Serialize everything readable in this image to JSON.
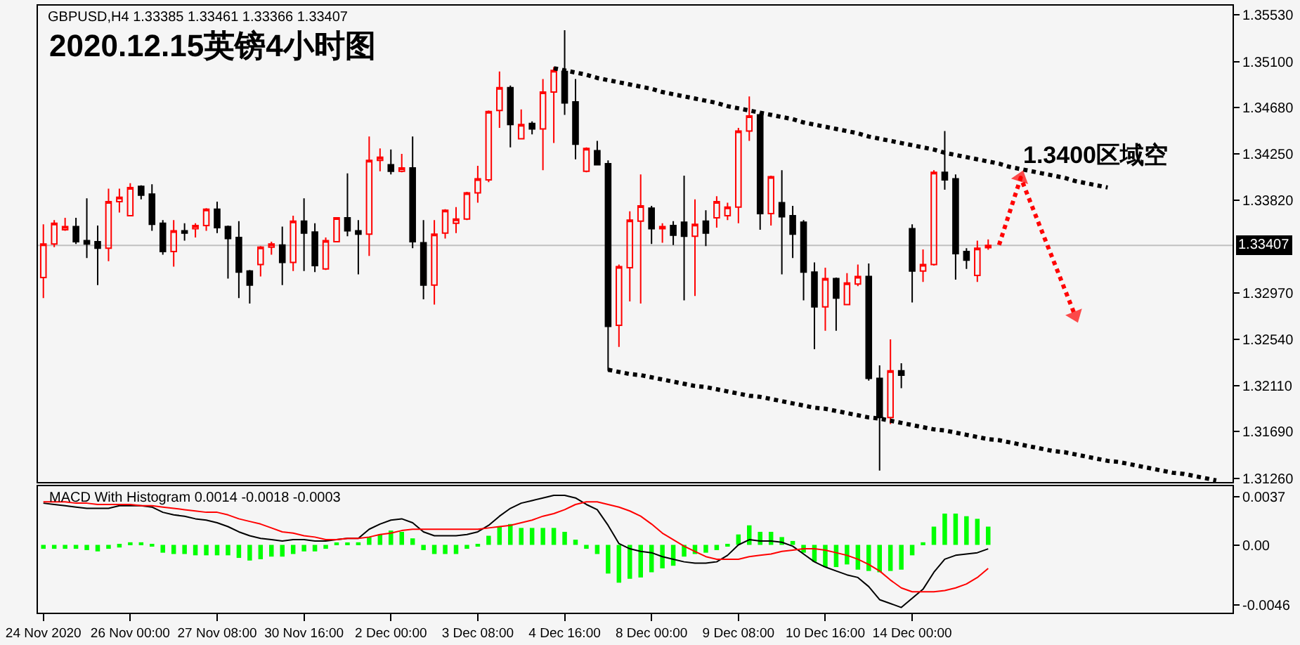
{
  "chart_data": [
    {
      "type": "candlestick",
      "title": "2020.12.15英镑4小时图",
      "subtitle": "GBPUSD,H4 1.33385 1.33461 1.33366 1.33407",
      "categories": [
        null,
        null,
        null,
        null,
        null,
        null,
        null,
        null,
        null,
        null,
        null,
        null,
        null,
        null,
        null,
        null,
        null,
        null,
        null,
        null,
        null,
        null,
        null,
        null,
        null,
        null,
        null,
        null,
        null,
        null,
        null,
        null,
        null,
        null,
        null,
        null,
        null,
        null,
        null,
        null,
        null,
        null,
        null,
        null,
        null,
        null,
        null,
        null,
        null,
        null,
        null,
        null,
        null,
        null,
        null,
        null,
        null,
        null,
        null,
        null,
        null,
        null,
        null,
        null,
        null,
        null,
        null,
        null,
        null,
        null,
        null,
        null,
        null,
        null,
        null,
        null,
        null,
        null,
        null,
        null,
        null,
        null,
        null,
        null,
        null,
        null,
        null,
        null,
        null,
        null,
        null,
        null,
        null,
        null,
        null,
        null,
        null,
        null,
        null,
        null,
        null,
        null,
        null,
        null,
        null,
        null,
        null,
        null,
        null,
        null
      ],
      "ohlc": [
        [
          1.3311,
          1.336,
          1.3292,
          1.3342
        ],
        [
          1.3342,
          1.3364,
          1.3339,
          1.3361
        ],
        [
          1.3355,
          1.3366,
          1.3354,
          1.3358
        ],
        [
          1.3358,
          1.3366,
          1.3342,
          1.3344
        ],
        [
          1.3345,
          1.3384,
          1.3329,
          1.3342
        ],
        [
          1.3344,
          1.3359,
          1.3304,
          1.3338
        ],
        [
          1.3338,
          1.3393,
          1.3326,
          1.3381
        ],
        [
          1.3381,
          1.3393,
          1.3371,
          1.3385
        ],
        [
          1.3368,
          1.3398,
          1.3368,
          1.3394
        ],
        [
          1.3395,
          1.3396,
          1.3383,
          1.3387
        ],
        [
          1.3388,
          1.3397,
          1.3354,
          1.336
        ],
        [
          1.3361,
          1.3364,
          1.3332,
          1.3335
        ],
        [
          1.3335,
          1.3364,
          1.3321,
          1.3354
        ],
        [
          1.3354,
          1.3361,
          1.3345,
          1.3352
        ],
        [
          1.3356,
          1.3361,
          1.3348,
          1.3359
        ],
        [
          1.3359,
          1.3375,
          1.3354,
          1.3374
        ],
        [
          1.3374,
          1.3381,
          1.3352,
          1.3357
        ],
        [
          1.3358,
          1.3359,
          1.331,
          1.3347
        ],
        [
          1.3348,
          1.3363,
          1.3292,
          1.3316
        ],
        [
          1.3317,
          1.3318,
          1.3287,
          1.3304
        ],
        [
          1.3323,
          1.334,
          1.3312,
          1.3339
        ],
        [
          1.3339,
          1.3344,
          1.3332,
          1.3342
        ],
        [
          1.3341,
          1.3358,
          1.3304,
          1.3325
        ],
        [
          1.3325,
          1.3368,
          1.3317,
          1.3363
        ],
        [
          1.3363,
          1.3384,
          1.3317,
          1.3352
        ],
        [
          1.3353,
          1.3361,
          1.3316,
          1.3322
        ],
        [
          1.3319,
          1.3348,
          1.3318,
          1.3345
        ],
        [
          1.3344,
          1.3366,
          1.3344,
          1.3366
        ],
        [
          1.3366,
          1.3407,
          1.3349,
          1.3354
        ],
        [
          1.3354,
          1.3364,
          1.3314,
          1.3351
        ],
        [
          1.3351,
          1.3441,
          1.3331,
          1.3419
        ],
        [
          1.3419,
          1.343,
          1.3409,
          1.3422
        ],
        [
          1.3415,
          1.3429,
          1.3406,
          1.3409
        ],
        [
          1.3409,
          1.3425,
          1.3408,
          1.3412
        ],
        [
          1.3412,
          1.3441,
          1.3338,
          1.3344
        ],
        [
          1.3343,
          1.3364,
          1.3291,
          1.3304
        ],
        [
          1.3304,
          1.3364,
          1.3286,
          1.3351
        ],
        [
          1.3352,
          1.3374,
          1.3347,
          1.3373
        ],
        [
          1.3361,
          1.3376,
          1.3352,
          1.3365
        ],
        [
          1.3365,
          1.339,
          1.3364,
          1.3389
        ],
        [
          1.3389,
          1.3414,
          1.338,
          1.3402
        ],
        [
          1.3401,
          1.3465,
          1.3399,
          1.3464
        ],
        [
          1.3465,
          1.3501,
          1.3449,
          1.3486
        ],
        [
          1.3486,
          1.3488,
          1.3431,
          1.3452
        ],
        [
          1.3439,
          1.3466,
          1.3439,
          1.3452
        ],
        [
          1.3453,
          1.3455,
          1.3443,
          1.3448
        ],
        [
          1.3448,
          1.3494,
          1.341,
          1.3482
        ],
        [
          1.3482,
          1.3505,
          1.3435,
          1.3502
        ],
        [
          1.3501,
          1.3539,
          1.3461,
          1.3472
        ],
        [
          1.3473,
          1.3494,
          1.342,
          1.3434
        ],
        [
          1.3409,
          1.3431,
          1.3408,
          1.343
        ],
        [
          1.3428,
          1.3437,
          1.3415,
          1.3415
        ],
        [
          1.3416,
          1.3419,
          1.3225,
          1.3266
        ],
        [
          1.3267,
          1.3323,
          1.3247,
          1.3321
        ],
        [
          1.332,
          1.3372,
          1.3289,
          1.3364
        ],
        [
          1.3363,
          1.3406,
          1.3287,
          1.3377
        ],
        [
          1.3375,
          1.3377,
          1.3342,
          1.3356
        ],
        [
          1.3356,
          1.3361,
          1.3343,
          1.3358
        ],
        [
          1.3359,
          1.3363,
          1.3341,
          1.335
        ],
        [
          1.3362,
          1.3405,
          1.329,
          1.3349
        ],
        [
          1.3349,
          1.3383,
          1.3294,
          1.336
        ],
        [
          1.3363,
          1.3373,
          1.334,
          1.3352
        ],
        [
          1.3366,
          1.3386,
          1.3357,
          1.3381
        ],
        [
          1.3368,
          1.338,
          1.3364,
          1.3376
        ],
        [
          1.3376,
          1.3449,
          1.3361,
          1.3446
        ],
        [
          1.3446,
          1.3478,
          1.3437,
          1.346
        ],
        [
          1.3461,
          1.3463,
          1.3355,
          1.337
        ],
        [
          1.337,
          1.3405,
          1.3359,
          1.3404
        ],
        [
          1.338,
          1.341,
          1.3314,
          1.3367
        ],
        [
          1.3368,
          1.3377,
          1.3329,
          1.3351
        ],
        [
          1.3362,
          1.3364,
          1.329,
          1.3316
        ],
        [
          1.3316,
          1.3325,
          1.3245,
          1.3284
        ],
        [
          1.3284,
          1.332,
          1.3262,
          1.331
        ],
        [
          1.331,
          1.3311,
          1.3262,
          1.3292
        ],
        [
          1.3286,
          1.3315,
          1.3286,
          1.3306
        ],
        [
          1.3305,
          1.3323,
          1.3303,
          1.3312
        ],
        [
          1.3312,
          1.3324,
          1.3216,
          1.3218
        ],
        [
          1.3218,
          1.323,
          1.3133,
          1.3182
        ],
        [
          1.3182,
          1.3254,
          1.3176,
          1.3225
        ],
        [
          1.3225,
          1.3232,
          1.3209,
          1.3221
        ],
        [
          1.3356,
          1.336,
          1.3288,
          1.3317
        ],
        [
          1.3317,
          1.3337,
          1.3307,
          1.3323
        ],
        [
          1.3323,
          1.341,
          1.3322,
          1.3408
        ],
        [
          1.3408,
          1.3446,
          1.3392,
          1.3401
        ],
        [
          1.3402,
          1.3406,
          1.3309,
          1.3333
        ],
        [
          1.3335,
          1.3338,
          1.3319,
          1.3327
        ],
        [
          1.3313,
          1.3345,
          1.3307,
          1.3338
        ],
        [
          1.33385,
          1.33461,
          1.33366,
          1.33407
        ],
        null,
        null,
        null,
        null,
        null,
        null,
        null,
        null,
        null,
        null,
        null,
        null,
        null,
        null,
        null,
        null,
        null,
        null,
        null,
        null,
        null,
        null
      ],
      "colors": [
        "#ff0000",
        "#ff0000",
        "#ff0000",
        "#000000",
        "#000000",
        "#000000",
        "#ff0000",
        "#ff0000",
        "#ff0000",
        "#000000",
        "#000000",
        "#000000",
        "#ff0000",
        "#000000",
        "#ff0000",
        "#ff0000",
        "#000000",
        "#000000",
        "#000000",
        "#000000",
        "#ff0000",
        "#ff0000",
        "#000000",
        "#ff0000",
        "#000000",
        "#000000",
        "#ff0000",
        "#ff0000",
        "#000000",
        "#000000",
        "#ff0000",
        "#ff0000",
        "#000000",
        "#ff0000",
        "#000000",
        "#000000",
        "#ff0000",
        "#ff0000",
        "#ff0000",
        "#ff0000",
        "#ff0000",
        "#ff0000",
        "#ff0000",
        "#000000",
        "#ff0000",
        "#000000",
        "#ff0000",
        "#ff0000",
        "#000000",
        "#000000",
        "#ff0000",
        "#000000",
        "#000000",
        "#ff0000",
        "#ff0000",
        "#ff0000",
        "#000000",
        "#ff0000",
        "#000000",
        "#000000",
        "#ff0000",
        "#000000",
        "#ff0000",
        "#ff0000",
        "#ff0000",
        "#ff0000",
        "#000000",
        "#ff0000",
        "#000000",
        "#000000",
        "#000000",
        "#000000",
        "#ff0000",
        "#000000",
        "#ff0000",
        "#ff0000",
        "#000000",
        "#000000",
        "#ff0000",
        "#000000",
        "#000000",
        "#ff0000",
        "#ff0000",
        "#000000",
        "#000000",
        "#000000",
        "#ff0000",
        "#ff0000",
        null,
        null,
        null,
        null,
        null,
        null,
        null,
        null,
        null,
        null,
        null,
        null,
        null,
        null,
        null,
        null,
        null,
        null,
        null,
        null,
        null,
        null
      ],
      "series": [
        {
          "type": "line",
          "color": "#000000",
          "line_style": "dotted",
          "values": [
            null,
            null,
            null,
            null,
            null,
            null,
            null,
            null,
            null,
            null,
            null,
            null,
            null,
            null,
            null,
            null,
            null,
            null,
            null,
            null,
            null,
            null,
            null,
            null,
            null,
            null,
            null,
            null,
            null,
            null,
            null,
            null,
            null,
            null,
            null,
            null,
            null,
            null,
            null,
            null,
            null,
            null,
            null,
            null,
            null,
            null,
            null,
            1.3504,
            1.3502,
            1.35,
            1.3498,
            1.3495,
            1.3493,
            1.3491,
            1.3489,
            1.3487,
            1.3485,
            1.3482,
            1.348,
            1.3478,
            1.3476,
            1.3474,
            1.3472,
            1.3469,
            1.3467,
            1.3465,
            1.3463,
            1.3461,
            1.3459,
            1.3457,
            1.3454,
            1.3452,
            1.345,
            1.3448,
            1.3446,
            1.3444,
            1.3441,
            1.3439,
            1.3437,
            1.3435,
            1.3433,
            1.3431,
            1.3429,
            1.3426,
            1.3424,
            1.3422,
            1.342,
            1.3418,
            1.3416,
            1.3413,
            1.3411,
            1.3409,
            1.3407,
            1.3405,
            1.3403,
            1.34,
            1.3398,
            1.3396,
            1.3394,
            null,
            null,
            null,
            null,
            null,
            null,
            null,
            null,
            null,
            null,
            null
          ]
        },
        {
          "type": "line",
          "color": "#000000",
          "line_style": "dotted",
          "values": [
            null,
            null,
            null,
            null,
            null,
            null,
            null,
            null,
            null,
            null,
            null,
            null,
            null,
            null,
            null,
            null,
            null,
            null,
            null,
            null,
            null,
            null,
            null,
            null,
            null,
            null,
            null,
            null,
            null,
            null,
            null,
            null,
            null,
            null,
            null,
            null,
            null,
            null,
            null,
            null,
            null,
            null,
            null,
            null,
            null,
            null,
            null,
            null,
            null,
            null,
            null,
            null,
            1.3226,
            1.3224,
            1.3222,
            1.3221,
            1.3219,
            1.3217,
            1.3215,
            1.3213,
            1.3211,
            1.321,
            1.3208,
            1.3206,
            1.3204,
            1.3202,
            1.3201,
            1.3199,
            1.3197,
            1.3195,
            1.3193,
            1.3191,
            1.319,
            1.3188,
            1.3186,
            1.3184,
            1.3182,
            1.3181,
            1.3179,
            1.3177,
            1.3175,
            1.3173,
            1.3171,
            1.317,
            1.3168,
            1.3166,
            1.3164,
            1.3162,
            1.3161,
            1.3159,
            1.3157,
            1.3155,
            1.3153,
            1.3151,
            1.315,
            1.3148,
            1.3146,
            1.3144,
            1.3142,
            1.3141,
            1.3139,
            1.3137,
            1.3135,
            1.3133,
            1.3131,
            1.313,
            1.3128,
            1.3126,
            1.3124,
            null
          ]
        },
        {
          "type": "line",
          "color": "#ff0000",
          "line_style": "dotted",
          "marker": "triangle",
          "values": [
            null,
            null,
            null,
            null,
            null,
            null,
            null,
            null,
            null,
            null,
            null,
            null,
            null,
            null,
            null,
            null,
            null,
            null,
            null,
            null,
            null,
            null,
            null,
            null,
            null,
            null,
            null,
            null,
            null,
            null,
            null,
            null,
            null,
            null,
            null,
            null,
            null,
            null,
            null,
            null,
            null,
            null,
            null,
            null,
            null,
            null,
            null,
            null,
            null,
            null,
            null,
            null,
            null,
            null,
            null,
            null,
            null,
            null,
            null,
            null,
            null,
            null,
            null,
            null,
            null,
            null,
            null,
            null,
            null,
            null,
            null,
            null,
            null,
            null,
            null,
            null,
            null,
            null,
            null,
            null,
            null,
            null,
            null,
            null,
            null,
            null,
            null,
            null,
            1.3341,
            null,
            1.3403,
            null,
            null,
            null,
            null,
            1.3276,
            null,
            null,
            null,
            null,
            null,
            null,
            null,
            null,
            null,
            null,
            null,
            null,
            null,
            null
          ]
        }
      ],
      "ref_lines": [
        {
          "axis": "y",
          "value": 1.33407,
          "label": "1.33407",
          "color": "#c0c0c0"
        }
      ],
      "annotations": [
        "1.3400区域空"
      ],
      "ylim": [
        1.31225,
        1.35617
      ],
      "yticks": [
        {
          "value": 1.3553,
          "label": "1.35530"
        },
        {
          "value": 1.351,
          "label": "1.35100"
        },
        {
          "value": 1.3468,
          "label": "1.34680"
        },
        {
          "value": 1.3425,
          "label": "1.34250"
        },
        {
          "value": 1.3382,
          "label": "1.33820"
        },
        {
          "value": 1.3297,
          "label": "1.32970"
        },
        {
          "value": 1.3254,
          "label": "1.32540"
        },
        {
          "value": 1.3211,
          "label": "1.32110"
        },
        {
          "value": 1.3169,
          "label": "1.31690"
        },
        {
          "value": 1.3126,
          "label": "1.31260"
        }
      ],
      "tick_labels": "y"
    },
    {
      "type": "bar",
      "title": "MACD With Histogram 0.0014 -0.0018 -0.0003",
      "categories": [
        "24 Nov 2020",
        null,
        null,
        null,
        null,
        null,
        null,
        null,
        "26 Nov 00:00",
        null,
        null,
        null,
        null,
        null,
        null,
        null,
        "27 Nov 08:00",
        null,
        null,
        null,
        null,
        null,
        null,
        null,
        "30 Nov 16:00",
        null,
        null,
        null,
        null,
        null,
        null,
        null,
        "2 Dec 00:00",
        null,
        null,
        null,
        null,
        null,
        null,
        null,
        "3 Dec 08:00",
        null,
        null,
        null,
        null,
        null,
        null,
        null,
        "4 Dec 16:00",
        null,
        null,
        null,
        null,
        null,
        null,
        null,
        "8 Dec 00:00",
        null,
        null,
        null,
        null,
        null,
        null,
        null,
        "9 Dec 08:00",
        null,
        null,
        null,
        null,
        null,
        null,
        null,
        "10 Dec 16:00",
        null,
        null,
        null,
        null,
        null,
        null,
        null,
        "14 Dec 00:00",
        null,
        null,
        null,
        null,
        null,
        null,
        null,
        null,
        null,
        null,
        null,
        null,
        null,
        null,
        null,
        null,
        null,
        null,
        null,
        null,
        null,
        null,
        null,
        null,
        null,
        null,
        null,
        null,
        null
      ],
      "series": [
        {
          "color": "#00ff00",
          "values": [
            -0.0003,
            -0.0003,
            -0.0003,
            -0.0003,
            -0.0004,
            -0.0005,
            -0.0003,
            -0.0002,
            0.0002,
            0.0002,
            -0.0001,
            -0.0006,
            -0.0007,
            -0.0007,
            -0.0008,
            -0.0008,
            -0.0008,
            -0.0008,
            -0.001,
            -0.0012,
            -0.0011,
            -0.0009,
            -0.0009,
            -0.0007,
            -0.0005,
            -0.0005,
            -0.0003,
            0.0001,
            0.0001,
            0.0002,
            0.0006,
            0.0008,
            0.0011,
            0.001,
            0.0005,
            -0.0004,
            -0.0007,
            -0.0007,
            -0.0007,
            -0.0003,
            -0.0001,
            0.0007,
            0.0014,
            0.0016,
            0.0013,
            0.0013,
            0.0013,
            0.0013,
            0.001,
            0.0004,
            -0.0003,
            -0.0007,
            -0.0022,
            -0.0029,
            -0.0026,
            -0.0025,
            -0.0021,
            -0.0018,
            -0.0016,
            -0.0009,
            -0.0007,
            -0.0006,
            -0.0004,
            -0.0001,
            0.0008,
            0.0015,
            0.001,
            0.001,
            0.0006,
            0.0003,
            -0.0006,
            -0.0013,
            -0.0017,
            -0.0017,
            -0.0015,
            -0.0019,
            -0.002,
            -0.0021,
            -0.002,
            -0.0019,
            -0.0008,
            0.0002,
            0.0014,
            0.0024,
            0.0024,
            0.0022,
            0.002,
            0.0014,
            null,
            null,
            null,
            null,
            null,
            null,
            null,
            null,
            null,
            null,
            null,
            null,
            null,
            null,
            null,
            null,
            null,
            null,
            null,
            null,
            null,
            null
          ]
        },
        {
          "type": "line",
          "color": "#000000",
          "values": [
            0.0032,
            0.0031,
            0.003,
            0.0029,
            0.0028,
            0.0028,
            0.0028,
            0.003,
            0.003,
            0.003,
            0.0029,
            0.0025,
            0.0023,
            0.0022,
            0.002,
            0.0019,
            0.0017,
            0.0014,
            0.001,
            0.0007,
            0.0005,
            0.0004,
            0.0003,
            0.0004,
            0.0004,
            0.0003,
            0.0003,
            0.0004,
            0.0005,
            0.0005,
            0.0012,
            0.0016,
            0.0019,
            0.002,
            0.0017,
            0.001,
            0.0007,
            0.0007,
            0.0007,
            0.0008,
            0.001,
            0.0015,
            0.0022,
            0.0028,
            0.0032,
            0.0034,
            0.0036,
            0.0038,
            0.0038,
            0.0036,
            0.0031,
            0.0027,
            0.0015,
            0.0001,
            -0.0003,
            -0.0005,
            -0.0006,
            -0.0009,
            -0.0011,
            -0.0013,
            -0.0014,
            -0.0014,
            -0.0013,
            -0.0008,
            0.0,
            0.0004,
            0.0003,
            0.0003,
            0.0002,
            -0.0001,
            -0.0007,
            -0.0013,
            -0.0017,
            -0.002,
            -0.0023,
            -0.0025,
            -0.0032,
            -0.0042,
            -0.0045,
            -0.0048,
            -0.0041,
            -0.0034,
            -0.0021,
            -0.0011,
            -0.0008,
            -0.0007,
            -0.0006,
            -0.0003,
            null,
            null,
            null,
            null,
            null,
            null,
            null,
            null,
            null,
            null,
            null,
            null,
            null,
            null,
            null,
            null,
            null,
            null,
            null,
            null,
            null,
            null
          ]
        },
        {
          "type": "line",
          "color": "#ff0000",
          "values": [
            0.0033,
            0.0033,
            0.0033,
            0.0032,
            0.0032,
            0.0031,
            0.0031,
            0.0031,
            0.0031,
            0.003,
            0.003,
            0.0029,
            0.0028,
            0.0027,
            0.0026,
            0.0025,
            0.0025,
            0.0023,
            0.002,
            0.0018,
            0.0016,
            0.0013,
            0.001,
            0.0009,
            0.0007,
            0.0006,
            0.0004,
            0.0004,
            0.0005,
            0.0005,
            0.0006,
            0.0008,
            0.0009,
            0.0011,
            0.0012,
            0.0012,
            0.0012,
            0.0012,
            0.0012,
            0.0012,
            0.0012,
            0.0013,
            0.0014,
            0.0015,
            0.0017,
            0.0019,
            0.0022,
            0.0024,
            0.0027,
            0.0031,
            0.0033,
            0.0033,
            0.0031,
            0.0029,
            0.0026,
            0.0022,
            0.0016,
            0.0009,
            0.0004,
            -0.0001,
            -0.0005,
            -0.0009,
            -0.0011,
            -0.0011,
            -0.0011,
            -0.0009,
            -0.0008,
            -0.0007,
            -0.0005,
            -0.0004,
            -0.0003,
            -0.0003,
            -0.0004,
            -0.0006,
            -0.0008,
            -0.0011,
            -0.0015,
            -0.002,
            -0.0027,
            -0.0033,
            -0.0036,
            -0.0036,
            -0.0036,
            -0.0035,
            -0.0033,
            -0.003,
            -0.0025,
            -0.0018,
            null,
            null,
            null,
            null,
            null,
            null,
            null,
            null,
            null,
            null,
            null,
            null,
            null,
            null,
            null,
            null,
            null,
            null,
            null,
            null,
            null,
            null
          ]
        }
      ],
      "ylim": [
        -0.0052,
        0.0045
      ],
      "yticks": [
        0.0037,
        {
          "value": 0,
          "label": "0.00"
        },
        -0.0046
      ]
    }
  ]
}
